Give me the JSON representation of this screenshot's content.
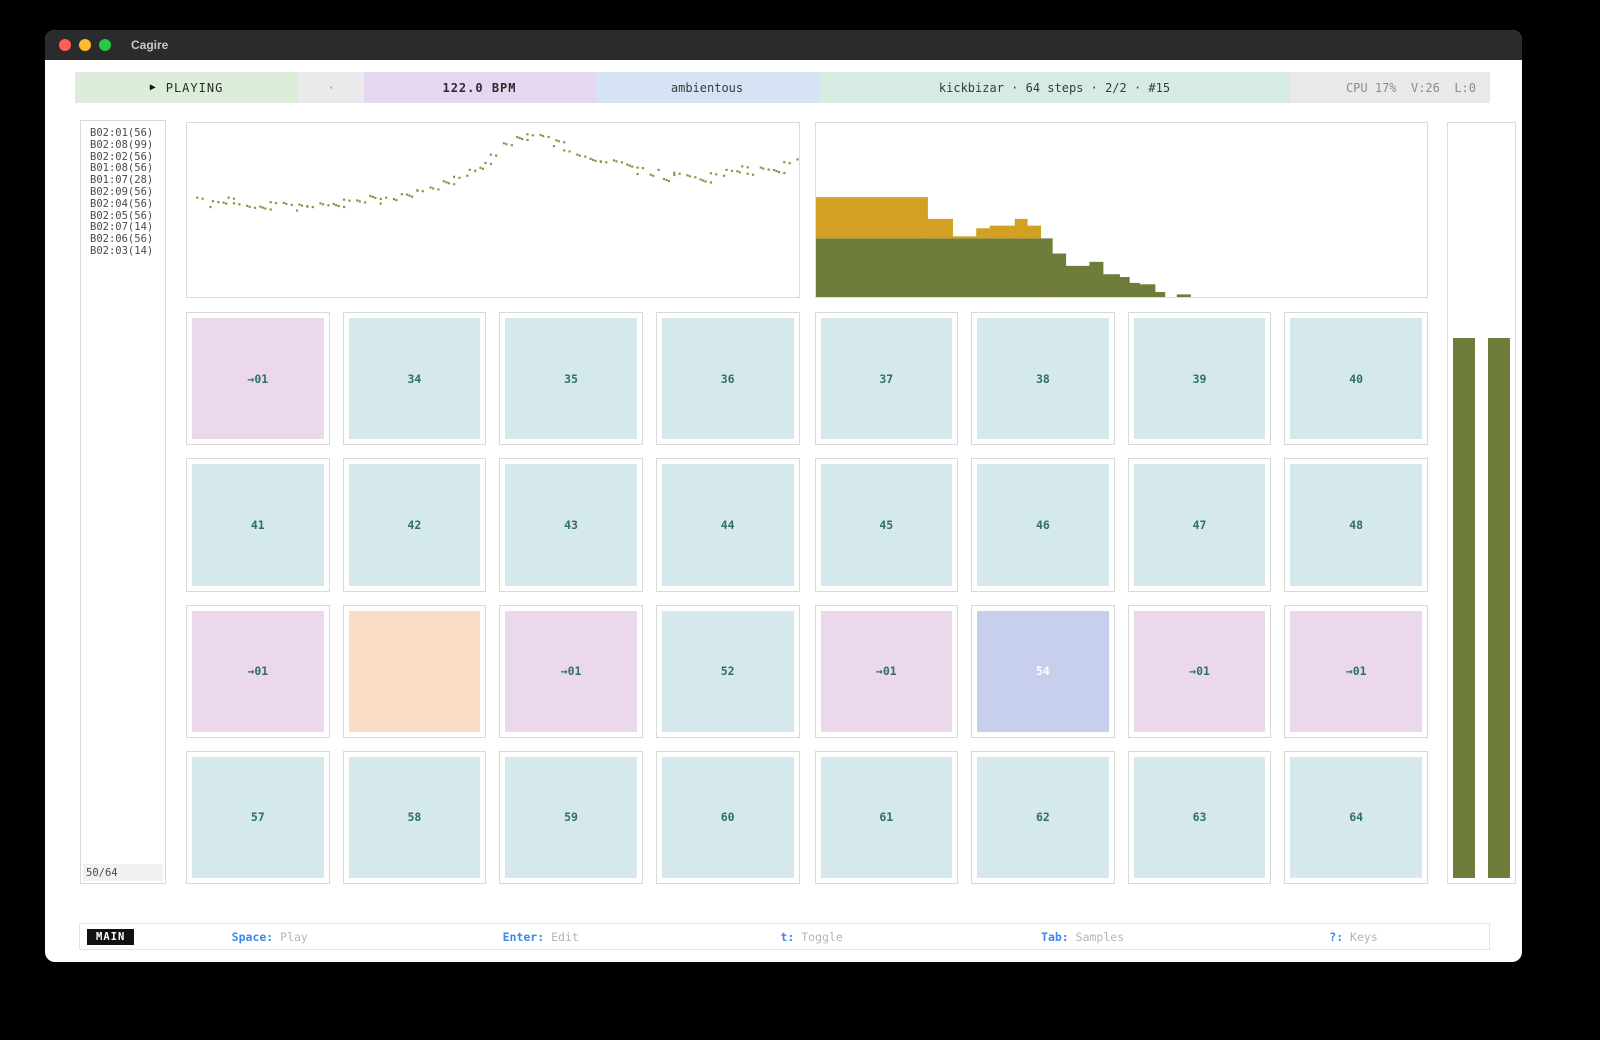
{
  "window": {
    "title": "Cagire"
  },
  "status_bar": {
    "playing_label": "PLAYING",
    "play_icon": "play-triangle",
    "tick": "·",
    "bpm": "122.0 BPM",
    "pack": "ambientous",
    "session": "kickbizar · 64 steps · 2/2 · #15",
    "stats": "CPU 17%  V:26  L:0"
  },
  "sidebar": {
    "items": [
      "B02:01(56)",
      "B02:08(99)",
      "B02:02(56)",
      "B01:08(56)",
      "B01:07(28)",
      "B02:09(56)",
      "B02:04(56)",
      "B02:05(56)",
      "B02:07(14)",
      "B02:06(56)",
      "B02:03(14)"
    ],
    "counter": "50/64"
  },
  "charts": {
    "waveform": {
      "type": "scatter",
      "dot_color": "#8c9140",
      "points": [
        [
          0.015,
          0.44
        ],
        [
          0.035,
          0.46
        ],
        [
          0.055,
          0.44
        ],
        [
          0.075,
          0.45
        ],
        [
          0.095,
          0.47
        ],
        [
          0.115,
          0.48
        ],
        [
          0.135,
          0.46
        ],
        [
          0.155,
          0.47
        ],
        [
          0.175,
          0.48
        ],
        [
          0.195,
          0.46
        ],
        [
          0.215,
          0.45
        ],
        [
          0.235,
          0.46
        ],
        [
          0.255,
          0.44
        ],
        [
          0.275,
          0.45
        ],
        [
          0.295,
          0.43
        ],
        [
          0.315,
          0.44
        ],
        [
          0.335,
          0.42
        ],
        [
          0.355,
          0.4
        ],
        [
          0.375,
          0.38
        ],
        [
          0.395,
          0.37
        ],
        [
          0.415,
          0.34
        ],
        [
          0.435,
          0.32
        ],
        [
          0.455,
          0.28
        ],
        [
          0.475,
          0.24
        ],
        [
          0.495,
          0.17
        ],
        [
          0.515,
          0.11
        ],
        [
          0.535,
          0.08
        ],
        [
          0.555,
          0.07
        ],
        [
          0.575,
          0.08
        ],
        [
          0.595,
          0.11
        ],
        [
          0.615,
          0.14
        ],
        [
          0.635,
          0.17
        ],
        [
          0.655,
          0.2
        ],
        [
          0.675,
          0.22
        ],
        [
          0.695,
          0.22
        ],
        [
          0.715,
          0.25
        ],
        [
          0.735,
          0.27
        ],
        [
          0.755,
          0.28
        ],
        [
          0.775,
          0.31
        ],
        [
          0.795,
          0.28
        ],
        [
          0.815,
          0.3
        ],
        [
          0.835,
          0.33
        ],
        [
          0.855,
          0.3
        ],
        [
          0.875,
          0.28
        ],
        [
          0.895,
          0.26
        ],
        [
          0.915,
          0.28
        ],
        [
          0.935,
          0.25
        ],
        [
          0.955,
          0.27
        ],
        [
          0.975,
          0.23
        ],
        [
          0.995,
          0.22
        ]
      ]
    },
    "histogram": {
      "type": "bar",
      "green_color": "#6f7d3a",
      "gold_color": "#d2a023",
      "bins": [
        [
          0.0,
          0.182,
          0.337,
          0.237
        ],
        [
          0.182,
          0.041,
          0.337,
          0.112
        ],
        [
          0.223,
          0.039,
          0.337,
          0.012
        ],
        [
          0.262,
          0.022,
          0.337,
          0.058
        ],
        [
          0.284,
          0.041,
          0.337,
          0.073
        ],
        [
          0.325,
          0.02,
          0.337,
          0.112
        ],
        [
          0.345,
          0.022,
          0.337,
          0.073
        ],
        [
          0.367,
          0.019,
          0.337,
          0.0
        ],
        [
          0.386,
          0.022,
          0.25,
          0.0
        ],
        [
          0.408,
          0.039,
          0.179,
          0.0
        ],
        [
          0.447,
          0.022,
          0.202,
          0.0
        ],
        [
          0.469,
          0.027,
          0.131,
          0.0
        ],
        [
          0.496,
          0.016,
          0.115,
          0.0
        ],
        [
          0.512,
          0.017,
          0.081,
          0.0
        ],
        [
          0.529,
          0.025,
          0.073,
          0.0
        ],
        [
          0.554,
          0.016,
          0.029,
          0.0
        ],
        [
          0.59,
          0.022,
          0.015,
          0.0
        ]
      ]
    }
  },
  "grid": {
    "cells": [
      {
        "label": "→01",
        "variant": "pink"
      },
      {
        "label": "34",
        "variant": "blue"
      },
      {
        "label": "35",
        "variant": "blue"
      },
      {
        "label": "36",
        "variant": "blue"
      },
      {
        "label": "37",
        "variant": "blue"
      },
      {
        "label": "38",
        "variant": "blue"
      },
      {
        "label": "39",
        "variant": "blue"
      },
      {
        "label": "40",
        "variant": "blue"
      },
      {
        "label": "41",
        "variant": "blue"
      },
      {
        "label": "42",
        "variant": "blue"
      },
      {
        "label": "43",
        "variant": "blue"
      },
      {
        "label": "44",
        "variant": "blue"
      },
      {
        "label": "45",
        "variant": "blue"
      },
      {
        "label": "46",
        "variant": "blue"
      },
      {
        "label": "47",
        "variant": "blue"
      },
      {
        "label": "48",
        "variant": "blue"
      },
      {
        "label": "→01",
        "variant": "pink"
      },
      {
        "label": "",
        "variant": "orange"
      },
      {
        "label": "→01",
        "variant": "pink"
      },
      {
        "label": "52",
        "variant": "blue"
      },
      {
        "label": "→01",
        "variant": "pink"
      },
      {
        "label": "54",
        "variant": "periwinkle"
      },
      {
        "label": "→01",
        "variant": "pink"
      },
      {
        "label": "→01",
        "variant": "pink"
      },
      {
        "label": "57",
        "variant": "blue"
      },
      {
        "label": "58",
        "variant": "blue"
      },
      {
        "label": "59",
        "variant": "blue"
      },
      {
        "label": "60",
        "variant": "blue"
      },
      {
        "label": "61",
        "variant": "blue"
      },
      {
        "label": "62",
        "variant": "blue"
      },
      {
        "label": "63",
        "variant": "blue"
      },
      {
        "label": "64",
        "variant": "blue"
      }
    ]
  },
  "meters": {
    "left_level": 0.715,
    "right_level": 0.715,
    "color": "#6f7d3a"
  },
  "footer": {
    "mode": "MAIN",
    "shortcuts": [
      {
        "key": "Space",
        "action": "Play"
      },
      {
        "key": "Enter",
        "action": "Edit"
      },
      {
        "key": "t",
        "action": "Toggle"
      },
      {
        "key": "Tab",
        "action": "Samples"
      },
      {
        "key": "?",
        "action": "Keys"
      }
    ]
  },
  "colors": {
    "status_green": "#dcedda",
    "status_gray": "#eaeaec",
    "status_purple": "#e5d7ef",
    "status_blue": "#d6e3f5",
    "status_mint": "#d6ece2",
    "cell_blue": "#d5e8ec",
    "cell_pink": "#ecd8ec",
    "cell_orange": "#f9dcc3",
    "cell_periwinkle": "#c7cfed",
    "cell_text": "#2f6f68",
    "olive": "#6f7d3a",
    "gold": "#d2a023",
    "dot": "#8c9140",
    "key_blue": "#3f87e8"
  }
}
